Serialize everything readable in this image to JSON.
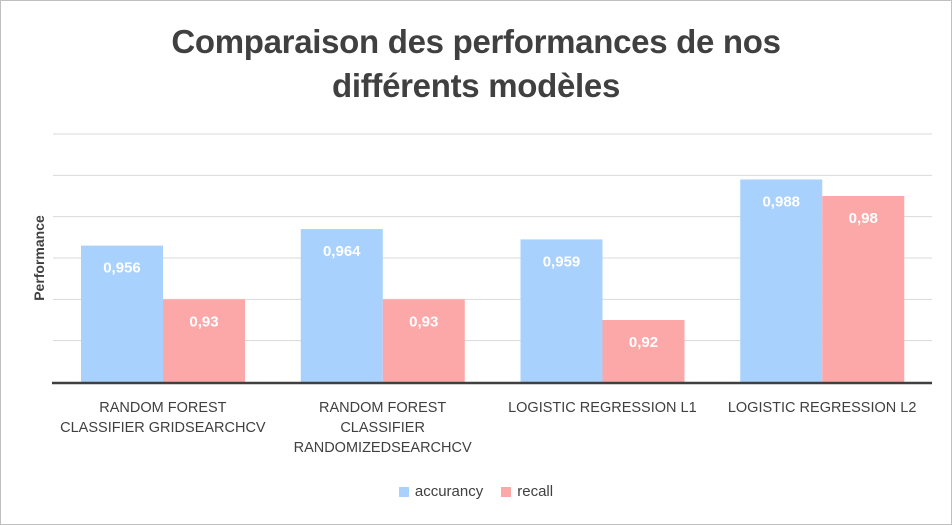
{
  "chart_data": {
    "type": "bar",
    "title_lines": [
      "Comparaison des performances de nos",
      "différents modèles"
    ],
    "xlabel": "",
    "ylabel": "Performance",
    "categories": [
      [
        "RANDOM FOREST",
        "CLASSIFIER GRIDSEARCHCV"
      ],
      [
        "RANDOM FOREST",
        "CLASSIFIER",
        "RANDOMIZEDSEARCHCV"
      ],
      [
        "LOGISTIC REGRESSION L1"
      ],
      [
        "LOGISTIC REGRESSION L2"
      ]
    ],
    "series": [
      {
        "name": "accurancy",
        "color": "#a9d1fd",
        "values": [
          0.956,
          0.964,
          0.959,
          0.988
        ],
        "labels": [
          "0,956",
          "0,964",
          "0,959",
          "0,988"
        ]
      },
      {
        "name": "recall",
        "color": "#fda8a8",
        "values": [
          0.93,
          0.93,
          0.92,
          0.98
        ],
        "labels": [
          "0,93",
          "0,93",
          "0,92",
          "0,98"
        ]
      }
    ],
    "ylim": [
      0.89,
      1.01
    ],
    "gridlines": [
      0.91,
      0.93,
      0.95,
      0.97,
      0.99,
      1.01
    ],
    "y_tick_labels_shown": false,
    "grid": true,
    "legend_position": "bottom"
  }
}
